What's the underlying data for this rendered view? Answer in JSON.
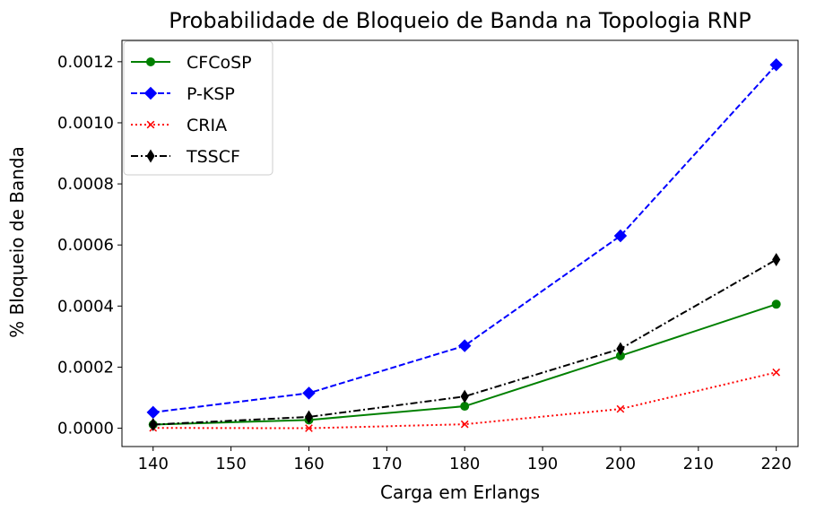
{
  "chart_data": {
    "type": "line",
    "title": "Probabilidade de Bloqueio de Banda na Topologia RNP",
    "xlabel": "Carga em Erlangs",
    "ylabel": "% Bloqueio de Banda",
    "x": [
      140,
      160,
      180,
      200,
      220
    ],
    "xlim": [
      136,
      222.8
    ],
    "ylim": [
      -6e-05,
      0.00127
    ],
    "xticks": [
      140,
      150,
      160,
      170,
      180,
      190,
      200,
      210,
      220
    ],
    "yticks": [
      0.0,
      0.0002,
      0.0004,
      0.0006,
      0.0008,
      0.001,
      0.0012
    ],
    "ytick_labels": [
      "0.0000",
      "0.0002",
      "0.0004",
      "0.0006",
      "0.0008",
      "0.0010",
      "0.0012"
    ],
    "grid": false,
    "legend_position": "top-left",
    "series": [
      {
        "name": "CFCoSP",
        "values": [
          1.2e-05,
          2.7e-05,
          7.2e-05,
          0.000237,
          0.000406
        ],
        "color": "#008000",
        "line": "solid",
        "marker": "circle"
      },
      {
        "name": "P-KSP",
        "values": [
          5.2e-05,
          0.000115,
          0.00027,
          0.00063,
          0.00119
        ],
        "color": "#0000ff",
        "line": "dashed",
        "marker": "diamond"
      },
      {
        "name": "CRIA",
        "values": [
          1e-06,
          0.0,
          1.3e-05,
          6.3e-05,
          0.000183
        ],
        "color": "#ff0000",
        "line": "dotted",
        "marker": "x"
      },
      {
        "name": "TSSCF",
        "values": [
          1.2e-05,
          3.7e-05,
          0.000104,
          0.00026,
          0.000552
        ],
        "color": "#000000",
        "line": "dashdot",
        "marker": "thin-diamond"
      }
    ]
  }
}
